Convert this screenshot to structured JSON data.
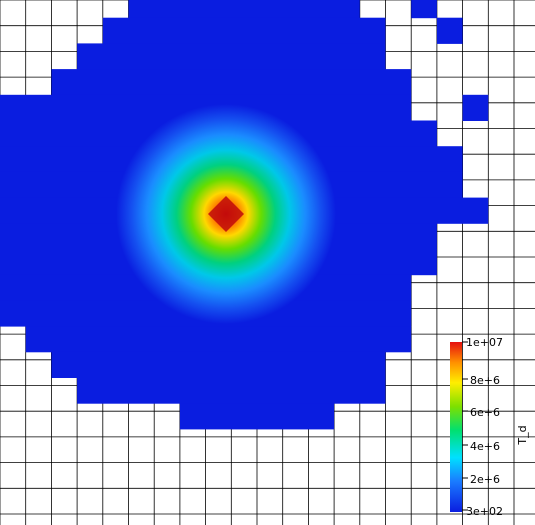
{
  "field_name": "T_d",
  "colorbar": {
    "title": "T_d",
    "min_label": "3e+02",
    "max_label": "1e+07",
    "tick_labels": [
      "2e+6",
      "4e+6",
      "6e+6",
      "8e+6"
    ],
    "min_value": 300,
    "max_value": 10000000,
    "colors": [
      "#0a1de0",
      "#1a7bff",
      "#00e0ff",
      "#00e070",
      "#7de000",
      "#ffee00",
      "#ff9000",
      "#e61010"
    ]
  },
  "colors": {
    "background_field": "#0a1de0",
    "grid_line": "#000000",
    "empty_cell": "#ffffff"
  }
}
